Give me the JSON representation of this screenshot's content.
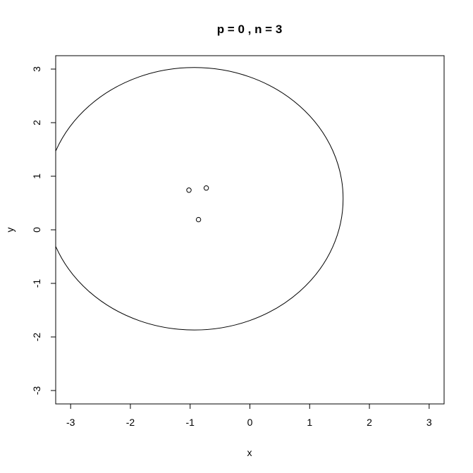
{
  "chart_data": {
    "type": "scatter",
    "title": "p = 0 , n = 3",
    "xlabel": "x",
    "ylabel": "y",
    "xlim": [
      -3.25,
      3.25
    ],
    "ylim": [
      -3.25,
      3.25
    ],
    "xticks": [
      -3,
      -2,
      -1,
      0,
      1,
      2,
      3
    ],
    "yticks": [
      -3,
      -2,
      -1,
      0,
      1,
      2,
      3
    ],
    "grid": false,
    "points": [
      {
        "x": -1.02,
        "y": 0.74
      },
      {
        "x": -0.73,
        "y": 0.78
      },
      {
        "x": -0.86,
        "y": 0.19
      }
    ],
    "ellipse": {
      "cx": -0.93,
      "cy": 0.58,
      "rx": 2.49,
      "ry": 2.45
    },
    "colors": {
      "foreground": "#000000",
      "background": "#ffffff"
    }
  }
}
